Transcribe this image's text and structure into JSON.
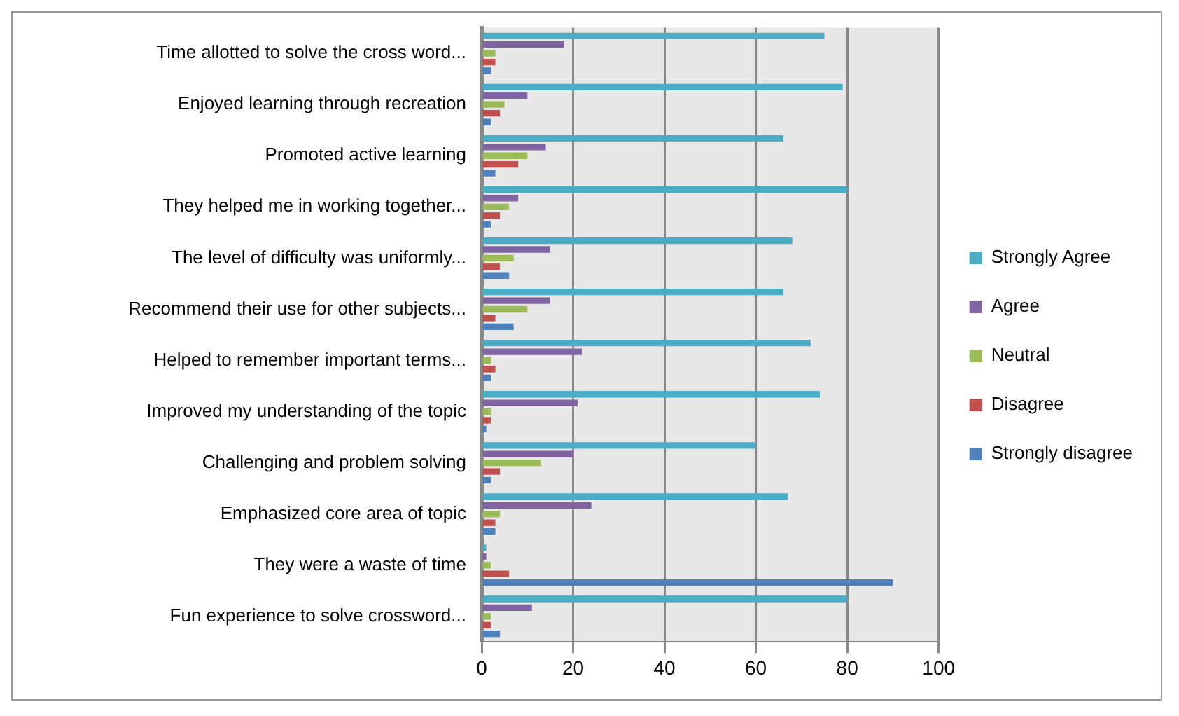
{
  "chart_data": {
    "type": "bar",
    "orientation": "horizontal",
    "categories": [
      "Time allotted to solve the cross word...",
      "Enjoyed learning through recreation",
      "Promoted active learning",
      "They helped me in working together...",
      "The level of difficulty was uniformly...",
      "Recommend their use for other subjects...",
      "Helped to remember important terms...",
      "Improved my understanding of the topic",
      "Challenging and problem solving",
      "Emphasized core area of topic",
      "They were a waste of time",
      "Fun experience to solve crossword..."
    ],
    "series": [
      {
        "name": "Strongly Agree",
        "color": "#4bacc6",
        "values": [
          75,
          79,
          66,
          80,
          68,
          66,
          72,
          74,
          60,
          67,
          1,
          80
        ]
      },
      {
        "name": "Agree",
        "color": "#8064a2",
        "values": [
          18,
          10,
          14,
          8,
          15,
          15,
          22,
          21,
          20,
          24,
          1,
          11
        ]
      },
      {
        "name": "Neutral",
        "color": "#9bbb59",
        "values": [
          3,
          5,
          10,
          6,
          7,
          10,
          2,
          2,
          13,
          4,
          2,
          2
        ]
      },
      {
        "name": "Disagree",
        "color": "#c0504d",
        "values": [
          3,
          4,
          8,
          4,
          4,
          3,
          3,
          2,
          4,
          3,
          6,
          2
        ]
      },
      {
        "name": "Strongly disagree",
        "color": "#4f81bd",
        "values": [
          2,
          2,
          3,
          2,
          6,
          7,
          2,
          1,
          2,
          3,
          90,
          4
        ]
      }
    ],
    "xlim": [
      0,
      100
    ],
    "xticks": [
      0,
      20,
      40,
      60,
      80,
      100
    ],
    "grid": "x",
    "legend": "right"
  }
}
